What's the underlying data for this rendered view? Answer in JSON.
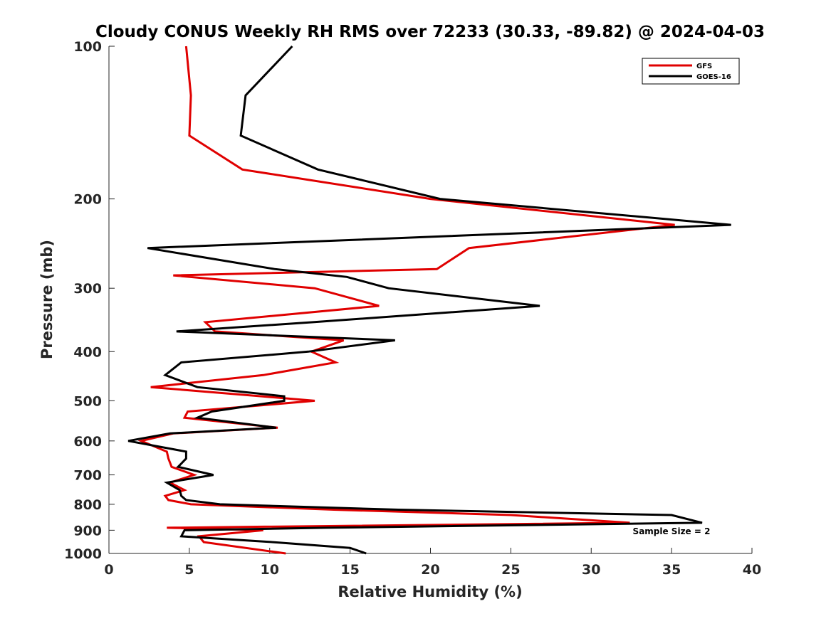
{
  "chart_data": {
    "type": "line",
    "title": "Cloudy CONUS Weekly RH RMS over 72233 (30.33, -89.82) @ 2024-04-03",
    "xlabel": "Relative Humidity (%)",
    "ylabel": "Pressure (mb)",
    "xlim": [
      0,
      40
    ],
    "ylim": [
      1000,
      100
    ],
    "y_scale": "log",
    "x_ticks": [
      0,
      5,
      10,
      15,
      20,
      25,
      30,
      35,
      40
    ],
    "y_ticks": [
      100,
      200,
      300,
      400,
      500,
      600,
      700,
      800,
      900,
      1000
    ],
    "annotation": "Sample Size = 2",
    "legend": [
      "GFS",
      "GOES-16"
    ],
    "series": [
      {
        "name": "GFS",
        "color": "#e00000",
        "points": [
          [
            4.8,
            100
          ],
          [
            5.1,
            125
          ],
          [
            5.0,
            150
          ],
          [
            8.3,
            175
          ],
          [
            20.0,
            200
          ],
          [
            35.2,
            225
          ],
          [
            22.4,
            250
          ],
          [
            20.4,
            275
          ],
          [
            4.0,
            283
          ],
          [
            12.8,
            300
          ],
          [
            16.8,
            325
          ],
          [
            6.0,
            350
          ],
          [
            6.6,
            365
          ],
          [
            14.6,
            380
          ],
          [
            12.6,
            400
          ],
          [
            14.1,
            420
          ],
          [
            9.6,
            445
          ],
          [
            2.6,
            470
          ],
          [
            9.5,
            490
          ],
          [
            12.8,
            500
          ],
          [
            4.9,
            525
          ],
          [
            4.7,
            540
          ],
          [
            10.5,
            565
          ],
          [
            4.0,
            580
          ],
          [
            2.0,
            600
          ],
          [
            3.6,
            630
          ],
          [
            3.7,
            650
          ],
          [
            3.9,
            675
          ],
          [
            5.3,
            700
          ],
          [
            3.8,
            725
          ],
          [
            4.7,
            750
          ],
          [
            3.5,
            770
          ],
          [
            3.7,
            785
          ],
          [
            5.1,
            800
          ],
          [
            14.0,
            820
          ],
          [
            25.0,
            840
          ],
          [
            32.4,
            870
          ],
          [
            3.6,
            890
          ],
          [
            9.6,
            900
          ],
          [
            5.6,
            925
          ],
          [
            5.9,
            950
          ],
          [
            11.0,
            1000
          ]
        ]
      },
      {
        "name": "GOES-16",
        "color": "#000000",
        "points": [
          [
            11.4,
            100
          ],
          [
            8.5,
            125
          ],
          [
            8.2,
            150
          ],
          [
            13.0,
            175
          ],
          [
            20.6,
            200
          ],
          [
            38.7,
            225
          ],
          [
            2.4,
            250
          ],
          [
            10.3,
            275
          ],
          [
            14.8,
            285
          ],
          [
            17.4,
            300
          ],
          [
            26.8,
            325
          ],
          [
            12.7,
            350
          ],
          [
            4.2,
            365
          ],
          [
            17.8,
            380
          ],
          [
            12.4,
            400
          ],
          [
            4.5,
            420
          ],
          [
            3.5,
            445
          ],
          [
            5.5,
            470
          ],
          [
            10.9,
            490
          ],
          [
            10.9,
            500
          ],
          [
            6.4,
            525
          ],
          [
            5.5,
            540
          ],
          [
            10.4,
            565
          ],
          [
            3.8,
            580
          ],
          [
            1.2,
            600
          ],
          [
            4.8,
            630
          ],
          [
            4.8,
            650
          ],
          [
            4.3,
            675
          ],
          [
            6.5,
            700
          ],
          [
            3.6,
            725
          ],
          [
            4.4,
            750
          ],
          [
            4.5,
            770
          ],
          [
            4.8,
            785
          ],
          [
            6.9,
            800
          ],
          [
            18.0,
            820
          ],
          [
            35.0,
            840
          ],
          [
            36.9,
            870
          ],
          [
            13.5,
            890
          ],
          [
            4.7,
            900
          ],
          [
            4.5,
            925
          ],
          [
            10.2,
            950
          ],
          [
            15.0,
            975
          ],
          [
            16.0,
            1000
          ]
        ]
      }
    ]
  }
}
